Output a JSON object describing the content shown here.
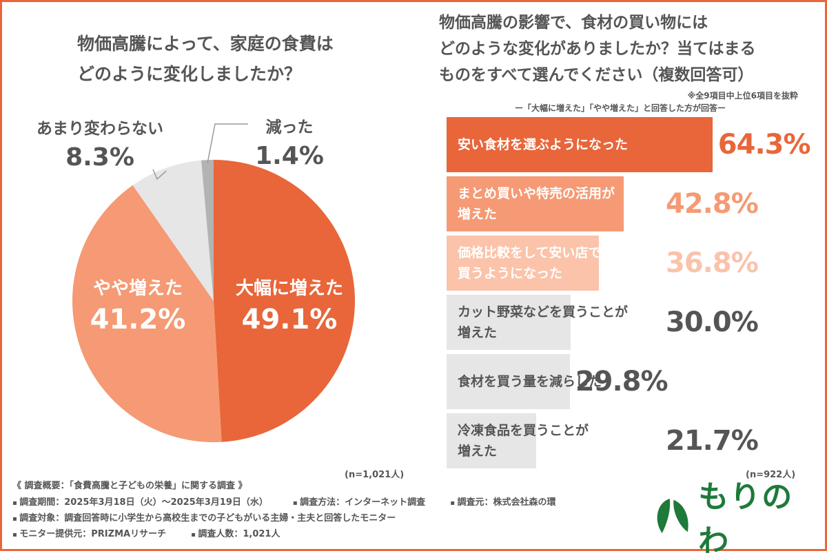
{
  "pie_title": "物価高騰によって、家庭の食費は\nどのように変化しましたか？",
  "bar_title": "物価高騰の影響で、食材の買い物には\nどのような変化がありましたか？当てはまる\nものをすべて選んでください（複数回答可）",
  "bar_note1": "※全9項目中上位6項目を抜粋",
  "bar_note2": "ー「大幅に増えた」「やや増えた」と回答した方が回答ー",
  "chart_data": [
    {
      "type": "pie",
      "title": "物価高騰によって、家庭の食費はどのように変化しましたか？",
      "categories": [
        "大幅に増えた",
        "やや増えた",
        "あまり変わらない",
        "減った"
      ],
      "values": [
        49.1,
        41.2,
        8.3,
        1.4
      ],
      "value_labels": [
        "49.1%",
        "41.2%",
        "8.3%",
        "1.4%"
      ],
      "colors": [
        "#E8663A",
        "#F59A74",
        "#E6E6E6",
        "#B3B3B3"
      ],
      "n": "(n=1,021人)"
    },
    {
      "type": "bar",
      "orientation": "horizontal",
      "title": "物価高騰の影響で、食材の買い物にはどのような変化がありましたか？当てはまるものをすべて選んでください（複数回答可）",
      "categories": [
        "安い食材を選ぶようになった",
        "まとめ買いや特売の活用が\n増えた",
        "価格比較をして安い店で\n買うようになった",
        "カット野菜などを買うことが\n増えた",
        "食材を買う量を減らした",
        "冷凍食品を買うことが\n増えた"
      ],
      "values": [
        64.3,
        42.8,
        36.8,
        30.0,
        29.8,
        21.7
      ],
      "value_labels": [
        "64.3%",
        "42.8%",
        "36.8%",
        "30.0%",
        "29.8%",
        "21.7%"
      ],
      "bar_colors": [
        "#E8663A",
        "#F59A74",
        "#FAC3AA",
        "#E6E6E6",
        "#E6E6E6",
        "#E6E6E6"
      ],
      "label_colors": [
        "#ffffff",
        "#ffffff",
        "#ffffff",
        "#555555",
        "#555555",
        "#555555"
      ],
      "value_colors": [
        "#E8663A",
        "#F59A74",
        "#FAC3AA",
        "#555555",
        "#555555",
        "#555555"
      ],
      "n": "(n=922人)"
    }
  ],
  "survey": {
    "heading": "《 調査概要：「食費高騰と子どもの栄養」に関する調査 》",
    "period": "調査期間：2025年3月18日（火）〜2025年3月19日（水）",
    "method": "調査方法：インターネット調査",
    "source": "調査元：株式会社森の環",
    "target": "調査対象：調査回答時に小学生から高校生までの子どもがいる主婦・主夫と回答したモニター",
    "provider": "モニター提供元：PRIZMAリサーチ",
    "count": "調査人数：1,021人"
  },
  "logo": {
    "text": "もりのわ",
    "color": "#1E7A3A"
  }
}
